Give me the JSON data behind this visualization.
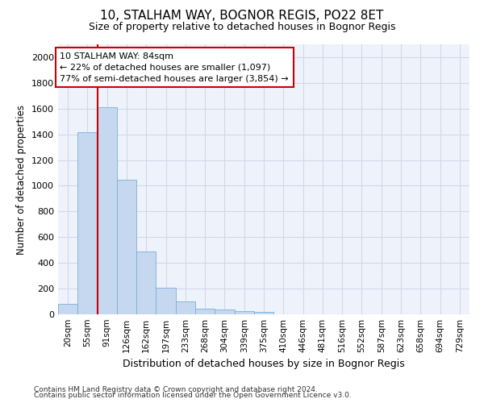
{
  "title": "10, STALHAM WAY, BOGNOR REGIS, PO22 8ET",
  "subtitle": "Size of property relative to detached houses in Bognor Regis",
  "xlabel": "Distribution of detached houses by size in Bognor Regis",
  "ylabel": "Number of detached properties",
  "categories": [
    "20sqm",
    "55sqm",
    "91sqm",
    "126sqm",
    "162sqm",
    "197sqm",
    "233sqm",
    "268sqm",
    "304sqm",
    "339sqm",
    "375sqm",
    "410sqm",
    "446sqm",
    "481sqm",
    "516sqm",
    "552sqm",
    "587sqm",
    "623sqm",
    "658sqm",
    "694sqm",
    "729sqm"
  ],
  "values": [
    80,
    1415,
    1610,
    1048,
    490,
    205,
    103,
    47,
    35,
    22,
    18,
    0,
    0,
    0,
    0,
    0,
    0,
    0,
    0,
    0,
    0
  ],
  "bar_color": "#c5d8f0",
  "bar_edge_color": "#7bafd4",
  "vline_color": "#cc0000",
  "vline_x_index": 2,
  "annotation_text_line1": "10 STALHAM WAY: 84sqm",
  "annotation_text_line2": "← 22% of detached houses are smaller (1,097)",
  "annotation_text_line3": "77% of semi-detached houses are larger (3,854) →",
  "annotation_box_color": "#ffffff",
  "annotation_box_edge_color": "#cc0000",
  "ylim": [
    0,
    2100
  ],
  "yticks": [
    0,
    200,
    400,
    600,
    800,
    1000,
    1200,
    1400,
    1600,
    1800,
    2000
  ],
  "grid_color": "#d0d8e8",
  "bg_color": "#eef2fa",
  "footer1": "Contains HM Land Registry data © Crown copyright and database right 2024.",
  "footer2": "Contains public sector information licensed under the Open Government Licence v3.0."
}
